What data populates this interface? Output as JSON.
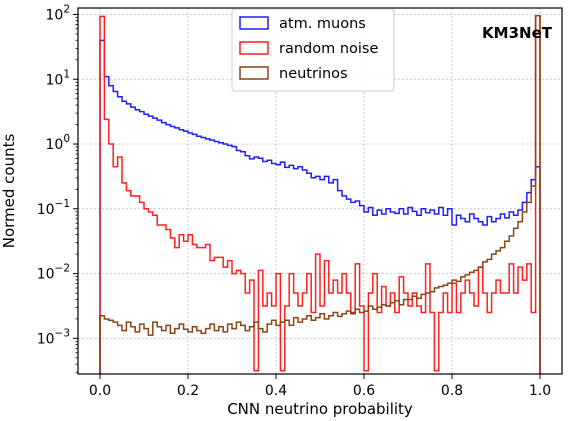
{
  "chart_data": {
    "type": "histogram-step",
    "xlabel": "CNN neutrino probability",
    "ylabel": "Normed counts",
    "annotation": "KM3NeT",
    "xlim": [
      -0.05,
      1.05
    ],
    "ylim_log10": [
      -3.55,
      2.1
    ],
    "yscale": "log",
    "grid": true,
    "legend_position": "top-center",
    "x_ticks": [
      {
        "value": 0.0,
        "label": "0.0"
      },
      {
        "value": 0.2,
        "label": "0.2"
      },
      {
        "value": 0.4,
        "label": "0.4"
      },
      {
        "value": 0.6,
        "label": "0.6"
      },
      {
        "value": 0.8,
        "label": "0.8"
      },
      {
        "value": 1.0,
        "label": "1.0"
      }
    ],
    "y_ticks": [
      {
        "exp": 2,
        "base": "10",
        "sup": "2"
      },
      {
        "exp": 1,
        "base": "10",
        "sup": "1"
      },
      {
        "exp": 0,
        "base": "10",
        "sup": "0"
      },
      {
        "exp": -1,
        "base": "10",
        "sup": "−1"
      },
      {
        "exp": -2,
        "base": "10",
        "sup": "−2"
      },
      {
        "exp": -3,
        "base": "10",
        "sup": "−3"
      }
    ],
    "bins": {
      "start": 0.0,
      "width": 0.01,
      "count": 100
    },
    "series": [
      {
        "name": "atm. muons",
        "color": "#1f1fff",
        "log10_values": [
          1.6,
          1.04,
          0.9,
          0.81,
          0.73,
          0.66,
          0.62,
          0.57,
          0.53,
          0.5,
          0.46,
          0.43,
          0.4,
          0.37,
          0.33,
          0.3,
          0.27,
          0.25,
          0.22,
          0.2,
          0.17,
          0.15,
          0.12,
          0.1,
          0.08,
          0.06,
          0.04,
          0.02,
          0.0,
          -0.02,
          -0.04,
          -0.1,
          -0.12,
          -0.18,
          -0.23,
          -0.2,
          -0.22,
          -0.27,
          -0.25,
          -0.3,
          -0.32,
          -0.28,
          -0.36,
          -0.33,
          -0.38,
          -0.35,
          -0.4,
          -0.45,
          -0.52,
          -0.5,
          -0.55,
          -0.5,
          -0.6,
          -0.55,
          -0.72,
          -0.8,
          -0.85,
          -0.9,
          -0.88,
          -0.95,
          -1.05,
          -0.98,
          -1.1,
          -1.02,
          -1.08,
          -1.0,
          -1.05,
          -1.07,
          -1.0,
          -1.08,
          -0.98,
          -1.04,
          -1.1,
          -1.0,
          -1.06,
          -1.02,
          -1.08,
          -0.98,
          -1.1,
          -1.0,
          -1.25,
          -1.1,
          -1.15,
          -1.2,
          -1.08,
          -1.15,
          -1.2,
          -1.25,
          -1.12,
          -1.2,
          -1.15,
          -1.08,
          -1.14,
          -1.05,
          -1.1,
          -1.02,
          -0.9,
          -0.75,
          -0.55,
          -0.35
        ]
      },
      {
        "name": "random noise",
        "color": "#ff1f1f",
        "log10_values": [
          1.97,
          0.38,
          0.0,
          -0.35,
          -0.2,
          -0.6,
          -0.72,
          -0.8,
          -0.8,
          -0.9,
          -1.0,
          -1.05,
          -1.1,
          -1.25,
          -1.25,
          -1.32,
          -1.45,
          -1.6,
          -1.4,
          -1.5,
          -1.4,
          -1.55,
          -1.6,
          -1.6,
          -1.55,
          -1.8,
          -1.75,
          -1.75,
          -1.9,
          -1.8,
          -2.0,
          -1.95,
          -2.0,
          -2.3,
          -2.1,
          -3.5,
          -1.95,
          -2.5,
          -2.3,
          -2.5,
          -2.0,
          -3.5,
          -2.5,
          -2.0,
          -2.3,
          -2.5,
          -2.3,
          -2.0,
          -2.6,
          -1.7,
          -2.5,
          -1.8,
          -2.3,
          -2.1,
          -2.3,
          -2.0,
          -2.3,
          -2.6,
          -1.85,
          -2.5,
          -3.5,
          -2.3,
          -2.0,
          -2.6,
          -2.2,
          -2.5,
          -2.3,
          -2.6,
          -2.05,
          -2.3,
          -2.5,
          -2.3,
          -2.5,
          -2.6,
          -1.85,
          -2.6,
          -3.5,
          -2.6,
          -2.3,
          -2.6,
          -2.15,
          -2.6,
          -2.3,
          -2.1,
          -2.3,
          -2.5,
          -1.9,
          -2.3,
          -2.6,
          -2.3,
          -2.1,
          -2.3,
          -2.3,
          -1.85,
          -2.3,
          -1.9,
          -2.1,
          -1.85,
          -2.6,
          1.98
        ]
      },
      {
        "name": "neutrinos",
        "color": "#8b4513",
        "log10_values": [
          -2.65,
          -2.7,
          -2.72,
          -2.75,
          -2.8,
          -2.88,
          -2.75,
          -2.82,
          -2.9,
          -2.78,
          -2.85,
          -2.95,
          -2.75,
          -2.82,
          -2.88,
          -2.8,
          -2.92,
          -2.85,
          -2.78,
          -2.86,
          -2.9,
          -2.82,
          -2.88,
          -2.92,
          -2.85,
          -2.78,
          -2.88,
          -2.82,
          -2.9,
          -2.78,
          -2.85,
          -2.75,
          -2.8,
          -2.88,
          -2.82,
          -2.75,
          -2.85,
          -2.9,
          -2.78,
          -2.72,
          -2.8,
          -2.75,
          -2.72,
          -2.8,
          -2.68,
          -2.75,
          -2.7,
          -2.65,
          -2.72,
          -2.68,
          -2.62,
          -2.7,
          -2.65,
          -2.6,
          -2.66,
          -2.62,
          -2.58,
          -2.62,
          -2.55,
          -2.6,
          -2.58,
          -2.5,
          -2.55,
          -2.52,
          -2.48,
          -2.5,
          -2.45,
          -2.42,
          -2.48,
          -2.4,
          -2.4,
          -2.35,
          -2.38,
          -2.32,
          -2.3,
          -2.28,
          -2.22,
          -2.2,
          -2.18,
          -2.15,
          -2.1,
          -2.12,
          -2.05,
          -2.02,
          -1.98,
          -1.95,
          -1.9,
          -1.82,
          -1.78,
          -1.7,
          -1.65,
          -1.6,
          -1.5,
          -1.42,
          -1.3,
          -1.2,
          -1.05,
          -0.9,
          -0.65,
          1.98
        ]
      }
    ]
  }
}
